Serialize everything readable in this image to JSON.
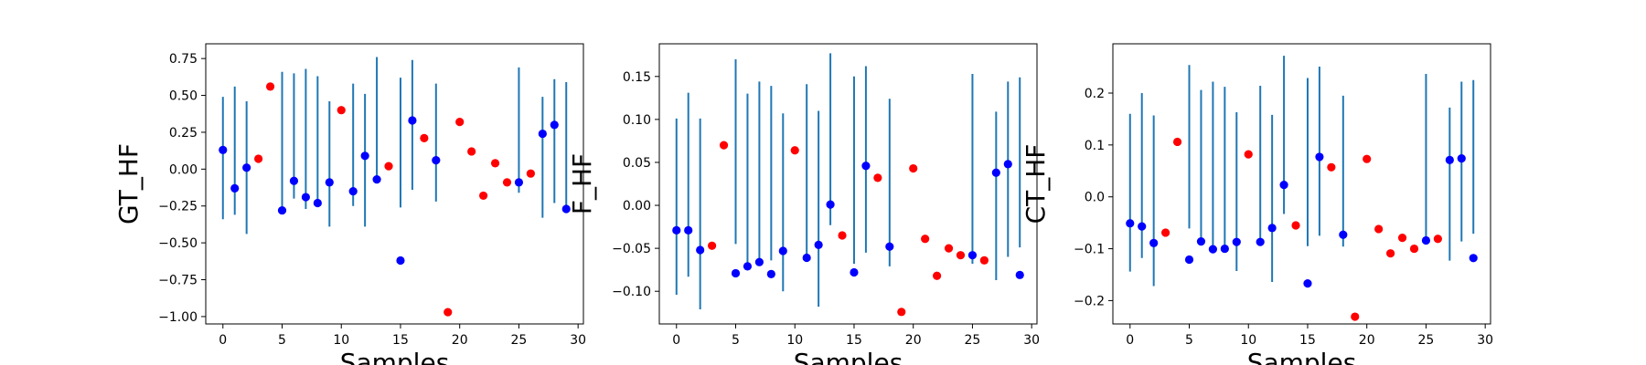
{
  "colors": {
    "blue": "#0000ff",
    "red": "#ff0000",
    "errorbar": "#1f77b4",
    "axes": "#000000"
  },
  "chart_data": [
    {
      "type": "scatter",
      "xlabel": "Samples",
      "ylabel": "GT_HF",
      "xlim": [
        -1.45,
        30.45
      ],
      "ylim": [
        -1.05,
        0.85
      ],
      "xticks": [
        0,
        5,
        10,
        15,
        20,
        25,
        30
      ],
      "yticks": [
        -1.0,
        -0.75,
        -0.5,
        -0.25,
        0.0,
        0.25,
        0.5,
        0.75
      ],
      "ytick_labels": [
        "−1.00",
        "−0.75",
        "−0.50",
        "−0.25",
        "0.00",
        "0.25",
        "0.50",
        "0.75"
      ],
      "x": [
        0,
        1,
        2,
        3,
        4,
        5,
        6,
        7,
        8,
        9,
        10,
        11,
        12,
        13,
        14,
        15,
        16,
        17,
        18,
        19,
        20,
        21,
        22,
        23,
        24,
        25,
        26,
        27,
        28,
        29
      ],
      "y": [
        0.13,
        -0.13,
        0.01,
        0.07,
        0.56,
        -0.28,
        -0.08,
        -0.19,
        -0.23,
        -0.09,
        0.4,
        -0.15,
        0.09,
        -0.07,
        0.02,
        -0.62,
        0.33,
        0.21,
        0.06,
        -0.97,
        0.32,
        0.12,
        -0.18,
        0.04,
        -0.09,
        -0.09,
        -0.03,
        0.24,
        0.3,
        -0.27
      ],
      "point_colors": [
        "blue",
        "blue",
        "blue",
        "red",
        "red",
        "blue",
        "blue",
        "blue",
        "blue",
        "blue",
        "red",
        "blue",
        "blue",
        "blue",
        "red",
        "blue",
        "blue",
        "red",
        "blue",
        "red",
        "red",
        "red",
        "red",
        "red",
        "red",
        "blue",
        "red",
        "blue",
        "blue",
        "blue"
      ],
      "error_bars": [
        {
          "x": 0,
          "low": -0.34,
          "high": 0.49
        },
        {
          "x": 1,
          "low": -0.31,
          "high": 0.56
        },
        {
          "x": 2,
          "low": -0.44,
          "high": 0.46
        },
        {
          "x": 5,
          "low": -0.27,
          "high": 0.66
        },
        {
          "x": 6,
          "low": -0.2,
          "high": 0.65
        },
        {
          "x": 7,
          "low": -0.27,
          "high": 0.68
        },
        {
          "x": 8,
          "low": -0.23,
          "high": 0.63
        },
        {
          "x": 9,
          "low": -0.39,
          "high": 0.46
        },
        {
          "x": 11,
          "low": -0.25,
          "high": 0.58
        },
        {
          "x": 12,
          "low": -0.39,
          "high": 0.51
        },
        {
          "x": 13,
          "low": -0.07,
          "high": 0.76
        },
        {
          "x": 15,
          "low": -0.26,
          "high": 0.62
        },
        {
          "x": 16,
          "low": -0.14,
          "high": 0.74
        },
        {
          "x": 18,
          "low": -0.22,
          "high": 0.58
        },
        {
          "x": 25,
          "low": -0.16,
          "high": 0.69
        },
        {
          "x": 27,
          "low": -0.33,
          "high": 0.49
        },
        {
          "x": 28,
          "low": -0.23,
          "high": 0.61
        },
        {
          "x": 29,
          "low": -0.26,
          "high": 0.59
        }
      ]
    },
    {
      "type": "scatter",
      "xlabel": "Samples",
      "ylabel": "F_HF",
      "xlim": [
        -1.45,
        30.45
      ],
      "ylim": [
        -0.138,
        0.188
      ],
      "xticks": [
        0,
        5,
        10,
        15,
        20,
        25,
        30
      ],
      "yticks": [
        -0.1,
        -0.05,
        0.0,
        0.05,
        0.1,
        0.15
      ],
      "ytick_labels": [
        "−0.10",
        "−0.05",
        "0.00",
        "0.05",
        "0.10",
        "0.15"
      ],
      "x": [
        0,
        1,
        2,
        3,
        4,
        5,
        6,
        7,
        8,
        9,
        10,
        11,
        12,
        13,
        14,
        15,
        16,
        17,
        18,
        19,
        20,
        21,
        22,
        23,
        24,
        25,
        26,
        27,
        28,
        29
      ],
      "y": [
        -0.029,
        -0.029,
        -0.052,
        -0.047,
        0.07,
        -0.079,
        -0.071,
        -0.066,
        -0.08,
        -0.053,
        0.064,
        -0.061,
        -0.046,
        0.001,
        -0.035,
        -0.078,
        0.046,
        0.032,
        -0.048,
        -0.124,
        0.043,
        -0.039,
        -0.082,
        -0.05,
        -0.058,
        -0.058,
        -0.064,
        0.038,
        0.048,
        -0.081
      ],
      "point_colors": [
        "blue",
        "blue",
        "blue",
        "red",
        "red",
        "blue",
        "blue",
        "blue",
        "blue",
        "blue",
        "red",
        "blue",
        "blue",
        "blue",
        "red",
        "blue",
        "blue",
        "red",
        "blue",
        "red",
        "red",
        "red",
        "red",
        "red",
        "red",
        "blue",
        "red",
        "blue",
        "blue",
        "blue"
      ],
      "error_bars": [
        {
          "x": 0,
          "low": -0.104,
          "high": 0.101
        },
        {
          "x": 1,
          "low": -0.083,
          "high": 0.131
        },
        {
          "x": 2,
          "low": -0.121,
          "high": 0.101
        },
        {
          "x": 5,
          "low": -0.045,
          "high": 0.17
        },
        {
          "x": 6,
          "low": -0.071,
          "high": 0.13
        },
        {
          "x": 7,
          "low": -0.066,
          "high": 0.144
        },
        {
          "x": 8,
          "low": -0.064,
          "high": 0.139
        },
        {
          "x": 9,
          "low": -0.1,
          "high": 0.107
        },
        {
          "x": 11,
          "low": -0.061,
          "high": 0.141
        },
        {
          "x": 12,
          "low": -0.118,
          "high": 0.11
        },
        {
          "x": 13,
          "low": -0.023,
          "high": 0.177
        },
        {
          "x": 15,
          "low": -0.068,
          "high": 0.15
        },
        {
          "x": 16,
          "low": -0.055,
          "high": 0.162
        },
        {
          "x": 18,
          "low": -0.071,
          "high": 0.124
        },
        {
          "x": 25,
          "low": -0.068,
          "high": 0.153
        },
        {
          "x": 27,
          "low": -0.087,
          "high": 0.109
        },
        {
          "x": 28,
          "low": -0.06,
          "high": 0.144
        },
        {
          "x": 29,
          "low": -0.049,
          "high": 0.149
        }
      ]
    },
    {
      "type": "scatter",
      "xlabel": "Samples",
      "ylabel": "CT_HF",
      "xlim": [
        -1.45,
        30.45
      ],
      "ylim": [
        -0.245,
        0.295
      ],
      "xticks": [
        0,
        5,
        10,
        15,
        20,
        25,
        30
      ],
      "yticks": [
        -0.2,
        -0.1,
        0.0,
        0.1,
        0.2
      ],
      "ytick_labels": [
        "−0.2",
        "−0.1",
        "0.0",
        "0.1",
        "0.2"
      ],
      "x": [
        0,
        1,
        2,
        3,
        4,
        5,
        6,
        7,
        8,
        9,
        10,
        11,
        12,
        13,
        14,
        15,
        16,
        17,
        18,
        19,
        20,
        21,
        22,
        23,
        24,
        25,
        26,
        27,
        28,
        29
      ],
      "y": [
        -0.051,
        -0.057,
        -0.089,
        -0.069,
        0.106,
        -0.121,
        -0.086,
        -0.101,
        -0.1,
        -0.087,
        0.082,
        -0.087,
        -0.06,
        0.023,
        -0.055,
        -0.167,
        0.077,
        0.057,
        -0.073,
        -0.231,
        0.073,
        -0.062,
        -0.109,
        -0.079,
        -0.1,
        -0.084,
        -0.081,
        0.071,
        0.074,
        -0.118
      ],
      "point_colors": [
        "blue",
        "blue",
        "blue",
        "red",
        "red",
        "blue",
        "blue",
        "blue",
        "blue",
        "blue",
        "red",
        "blue",
        "blue",
        "blue",
        "red",
        "blue",
        "blue",
        "red",
        "blue",
        "red",
        "red",
        "red",
        "red",
        "red",
        "red",
        "blue",
        "red",
        "blue",
        "blue",
        "blue"
      ],
      "error_bars": [
        {
          "x": 0,
          "low": -0.144,
          "high": 0.16
        },
        {
          "x": 1,
          "low": -0.118,
          "high": 0.2
        },
        {
          "x": 2,
          "low": -0.172,
          "high": 0.157
        },
        {
          "x": 5,
          "low": -0.061,
          "high": 0.254
        },
        {
          "x": 6,
          "low": -0.089,
          "high": 0.206
        },
        {
          "x": 7,
          "low": -0.098,
          "high": 0.222
        },
        {
          "x": 8,
          "low": -0.095,
          "high": 0.212
        },
        {
          "x": 9,
          "low": -0.143,
          "high": 0.163
        },
        {
          "x": 11,
          "low": -0.09,
          "high": 0.214
        },
        {
          "x": 12,
          "low": -0.164,
          "high": 0.158
        },
        {
          "x": 13,
          "low": -0.033,
          "high": 0.272
        },
        {
          "x": 15,
          "low": -0.095,
          "high": 0.229
        },
        {
          "x": 16,
          "low": -0.075,
          "high": 0.251
        },
        {
          "x": 18,
          "low": -0.096,
          "high": 0.195
        },
        {
          "x": 25,
          "low": -0.085,
          "high": 0.237
        },
        {
          "x": 27,
          "low": -0.123,
          "high": 0.172
        },
        {
          "x": 28,
          "low": -0.086,
          "high": 0.222
        },
        {
          "x": 29,
          "low": -0.071,
          "high": 0.225
        }
      ]
    }
  ]
}
